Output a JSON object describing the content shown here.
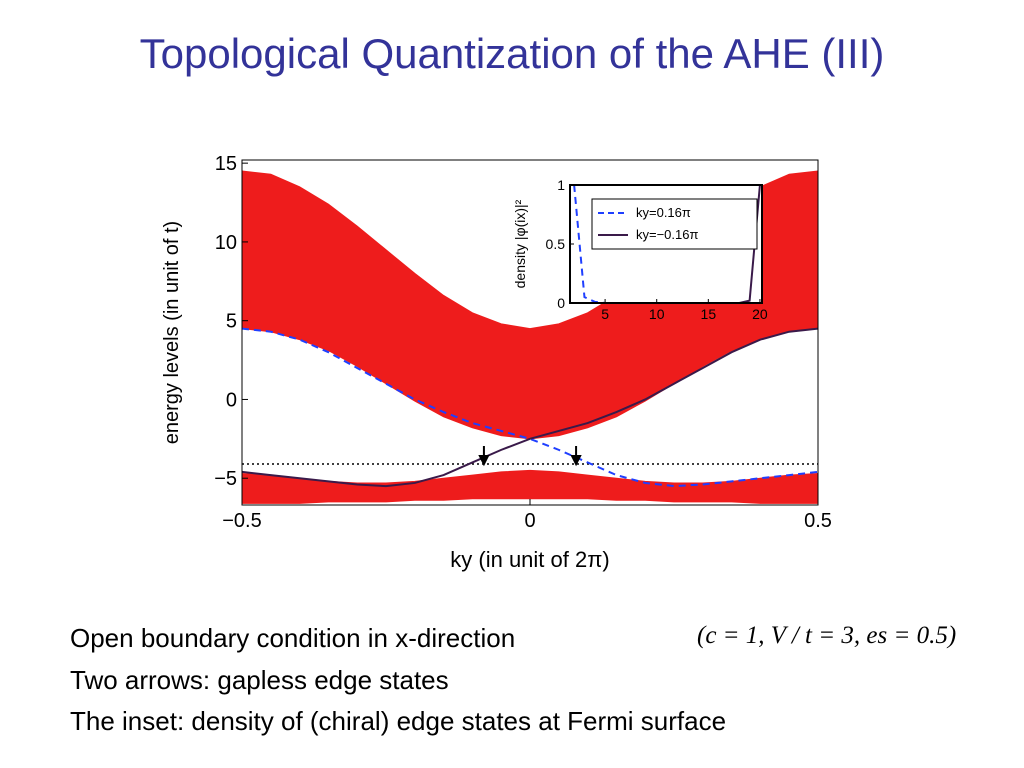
{
  "title": "Topological Quantization of the AHE (III)",
  "chart_data": [
    {
      "type": "line",
      "x_label": "ky (in unit of 2π)",
      "y_label": "energy levels (in unit of t)",
      "xlim": [
        -0.5,
        0.5
      ],
      "ylim": [
        -6.7,
        15.2
      ],
      "xticks": [
        {
          "value": -0.5,
          "label": "−0.5"
        },
        0,
        0.5
      ],
      "yticks": [
        15,
        10,
        5,
        0,
        {
          "value": -5,
          "label": "−5"
        }
      ],
      "x": [
        -0.5,
        -0.45,
        -0.4,
        -0.35,
        -0.3,
        -0.25,
        -0.2,
        -0.15,
        -0.1,
        -0.05,
        0,
        0.05,
        0.1,
        0.15,
        0.2,
        0.25,
        0.3,
        0.35,
        0.4,
        0.45,
        0.5
      ],
      "bands": [
        {
          "color": "#ee1c1c",
          "upper": [
            14.5,
            14.3,
            13.5,
            12.4,
            11.0,
            9.5,
            8.0,
            6.6,
            5.5,
            4.8,
            4.5,
            4.8,
            5.5,
            6.6,
            8.0,
            9.5,
            11.0,
            12.4,
            13.5,
            14.3,
            14.5
          ],
          "lower": [
            4.5,
            4.3,
            3.8,
            3.1,
            2.1,
            1.0,
            -0.1,
            -1.1,
            -1.8,
            -2.3,
            -2.5,
            -2.3,
            -1.8,
            -1.1,
            -0.1,
            1.0,
            2.1,
            3.1,
            3.8,
            4.3,
            4.5
          ]
        },
        {
          "color": "#ee1c1c",
          "upper": [
            -4.7,
            -4.8,
            -5.0,
            -5.2,
            -5.3,
            -5.3,
            -5.2,
            -5.0,
            -4.8,
            -4.6,
            -4.5,
            -4.6,
            -4.8,
            -5.0,
            -5.2,
            -5.3,
            -5.3,
            -5.2,
            -5.0,
            -4.8,
            -4.7
          ],
          "lower": [
            -6.6,
            -6.6,
            -6.6,
            -6.5,
            -6.5,
            -6.5,
            -6.4,
            -6.4,
            -6.3,
            -6.3,
            -6.3,
            -6.3,
            -6.3,
            -6.4,
            -6.4,
            -6.5,
            -6.5,
            -6.5,
            -6.6,
            -6.6,
            -6.6
          ]
        }
      ],
      "series": [
        {
          "color": "#1f3fff",
          "dash": true,
          "values": [
            4.5,
            4.3,
            3.8,
            3.0,
            2.0,
            1.0,
            0.0,
            -0.8,
            -1.5,
            -2.0,
            -2.5,
            -3.2,
            -4.0,
            -4.8,
            -5.3,
            -5.5,
            -5.4,
            -5.2,
            -5.0,
            -4.8,
            -4.6
          ]
        },
        {
          "color": "#3a1a4a",
          "dash": false,
          "values": [
            -4.6,
            -4.8,
            -5.0,
            -5.2,
            -5.4,
            -5.5,
            -5.3,
            -4.8,
            -4.0,
            -3.2,
            -2.5,
            -2.0,
            -1.5,
            -0.8,
            0.0,
            1.0,
            2.0,
            3.0,
            3.8,
            4.3,
            4.5
          ]
        }
      ],
      "hlines": [
        {
          "y": -4.1,
          "style": "dotted"
        }
      ],
      "arrows": [
        {
          "x": -0.08,
          "y": -4.1
        },
        {
          "x": 0.08,
          "y": -4.1
        }
      ]
    },
    {
      "type": "line",
      "y_label": "density |φ(ix)|²",
      "xlim": [
        1.6,
        20.2
      ],
      "ylim": [
        0,
        1
      ],
      "xticks": [
        5,
        10,
        15,
        20
      ],
      "yticks": [
        0,
        0.5,
        1
      ],
      "x": [
        2,
        3,
        4,
        5,
        6,
        7,
        8,
        9,
        10,
        11,
        12,
        13,
        14,
        15,
        16,
        17,
        18,
        19,
        20
      ],
      "series": [
        {
          "name": "ky=0.16π",
          "color": "#1f3fff",
          "dash": true,
          "values": [
            1,
            0.05,
            0.01,
            0,
            0,
            0,
            0,
            0,
            0,
            0,
            0,
            0,
            0,
            0,
            0,
            0,
            0,
            0,
            0
          ]
        },
        {
          "name": "ky=−0.16π",
          "color": "#3a1a4a",
          "dash": false,
          "values": [
            0,
            0,
            0,
            0,
            0,
            0,
            0,
            0,
            0,
            0,
            0,
            0,
            0,
            0,
            0,
            0,
            0,
            0.02,
            1
          ]
        }
      ]
    }
  ],
  "formula": "(c = 1, V / t = 3, es = 0.5)",
  "bullets": [
    "Open boundary condition in x-direction",
    "Two arrows: gapless edge states",
    "The inset: density of (chiral) edge states at Fermi surface"
  ]
}
